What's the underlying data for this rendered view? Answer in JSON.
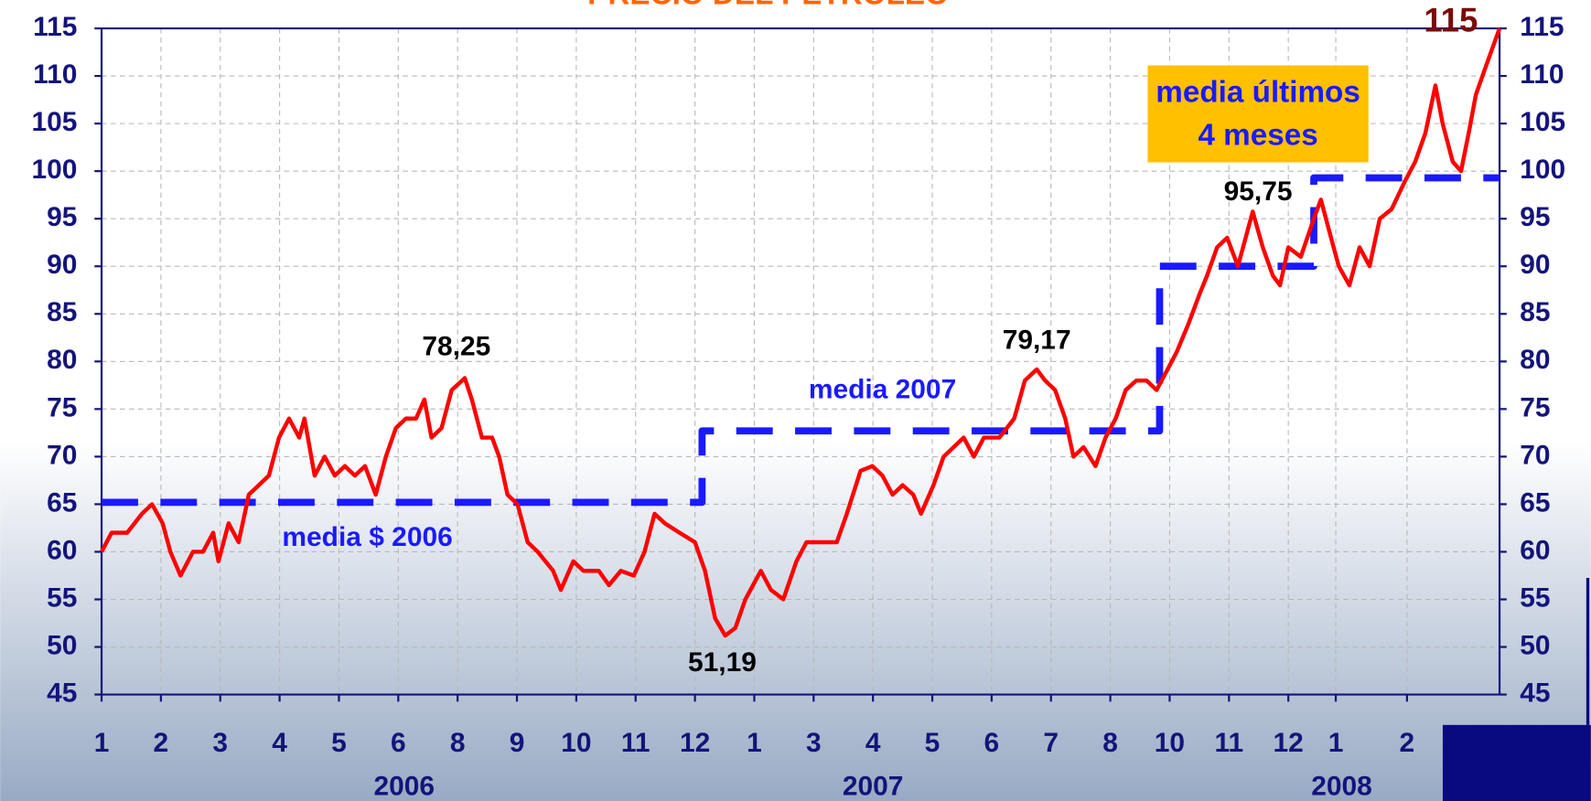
{
  "chart_data": {
    "type": "line",
    "title": "PRECIO DEL PETROLEO",
    "title_color": "#ff6600",
    "xlim": [
      0,
      23.56
    ],
    "ylim": [
      45,
      115
    ],
    "y2lim": [
      45,
      115
    ],
    "yticks": [
      45,
      50,
      55,
      60,
      65,
      70,
      75,
      80,
      85,
      90,
      95,
      100,
      105,
      110,
      115
    ],
    "y2ticks": [
      45,
      50,
      55,
      60,
      65,
      70,
      75,
      80,
      85,
      90,
      95,
      100,
      105,
      110,
      115
    ],
    "xticks": [
      {
        "value": 0,
        "label": "1"
      },
      {
        "value": 1,
        "label": "2"
      },
      {
        "value": 2,
        "label": "3"
      },
      {
        "value": 3,
        "label": "4"
      },
      {
        "value": 4,
        "label": "5"
      },
      {
        "value": 5,
        "label": "6"
      },
      {
        "value": 6,
        "label": "8"
      },
      {
        "value": 7,
        "label": "9"
      },
      {
        "value": 8,
        "label": "10"
      },
      {
        "value": 9,
        "label": "11"
      },
      {
        "value": 10,
        "label": "12"
      },
      {
        "value": 11,
        "label": "1"
      },
      {
        "value": 12,
        "label": "3"
      },
      {
        "value": 13,
        "label": "4"
      },
      {
        "value": 14,
        "label": "5"
      },
      {
        "value": 15,
        "label": "6"
      },
      {
        "value": 16,
        "label": "7"
      },
      {
        "value": 17,
        "label": "8"
      },
      {
        "value": 18,
        "label": "10"
      },
      {
        "value": 19,
        "label": "11"
      },
      {
        "value": 20,
        "label": "12"
      },
      {
        "value": 20.8,
        "label": "1"
      },
      {
        "value": 22,
        "label": "2"
      }
    ],
    "x_groups": [
      {
        "value": 5.1,
        "label": "2006"
      },
      {
        "value": 13,
        "label": "2007"
      },
      {
        "value": 20.9,
        "label": "2008"
      }
    ],
    "grid": true,
    "series": [
      {
        "color": "#ff0000",
        "x": [
          0,
          0.17,
          0.43,
          0.68,
          0.85,
          1.03,
          1.16,
          1.33,
          1.54,
          1.71,
          1.88,
          1.97,
          2.14,
          2.31,
          2.48,
          2.65,
          2.82,
          2.99,
          3.16,
          3.33,
          3.42,
          3.59,
          3.76,
          3.93,
          4.1,
          4.27,
          4.44,
          4.62,
          4.79,
          4.96,
          5.13,
          5.3,
          5.44,
          5.56,
          5.73,
          5.9,
          6.12,
          6.24,
          6.41,
          6.58,
          6.7,
          6.84,
          7.01,
          7.18,
          7.35,
          7.61,
          7.74,
          7.95,
          8.12,
          8.38,
          8.55,
          8.75,
          8.97,
          9.15,
          9.32,
          9.49,
          9.74,
          10,
          10.17,
          10.34,
          10.51,
          10.68,
          10.85,
          11.11,
          11.28,
          11.49,
          11.71,
          11.88,
          12.14,
          12.39,
          12.56,
          12.79,
          12.99,
          13.16,
          13.33,
          13.5,
          13.68,
          13.81,
          14.02,
          14.19,
          14.36,
          14.53,
          14.7,
          14.87,
          15.13,
          15.38,
          15.56,
          15.76,
          15.9,
          16.07,
          16.24,
          16.38,
          16.55,
          16.75,
          16.92,
          17.09,
          17.26,
          17.44,
          17.61,
          17.78,
          17.95,
          18.12,
          18.32,
          18.5,
          18.63,
          18.8,
          18.97,
          19.15,
          19.28,
          19.4,
          19.57,
          19.74,
          19.86,
          20,
          20.21,
          20.43,
          20.55,
          20.72,
          20.85,
          21.03,
          21.2,
          21.37,
          21.54,
          21.74,
          21.97,
          22.14,
          22.31,
          22.48,
          22.6,
          22.77,
          22.91,
          23.04,
          23.16,
          23.33,
          23.56
        ],
        "values": [
          60,
          62,
          62,
          64,
          65,
          63,
          60,
          57.5,
          60,
          60,
          62,
          59,
          63,
          61,
          66,
          67,
          68,
          72,
          74,
          72,
          74,
          68,
          70,
          68,
          69,
          68,
          69,
          66,
          70,
          73,
          74,
          74,
          76,
          72,
          73,
          77,
          78.25,
          76,
          72,
          72,
          70,
          66,
          65,
          61,
          60,
          58,
          56,
          59,
          58,
          58,
          56.5,
          58,
          57.5,
          60,
          64,
          63,
          62,
          61,
          58,
          53,
          51.19,
          52,
          55,
          58,
          56,
          55,
          59,
          61,
          61,
          61,
          64,
          68.5,
          69,
          68,
          66,
          67,
          66,
          64,
          67,
          70,
          71,
          72,
          70,
          72,
          72,
          74,
          78,
          79.17,
          78,
          77,
          74,
          70,
          71,
          69,
          72,
          74,
          77,
          78,
          78,
          77,
          79,
          81,
          84,
          87,
          89,
          92,
          93,
          90,
          93,
          95.75,
          92,
          89,
          88,
          92,
          91,
          95,
          97,
          93,
          90,
          88,
          92,
          90,
          95,
          96,
          99,
          101,
          104,
          109,
          105,
          101,
          100,
          104,
          108,
          111,
          115
        ]
      },
      {
        "color": "#1a1aff",
        "dashed": true,
        "x": [
          0,
          10.12,
          10.12,
          17.83,
          17.83,
          20.43,
          20.43,
          23.56
        ],
        "values": [
          65.2,
          65.2,
          72.7,
          72.7,
          90,
          90,
          99.3,
          99.3
        ]
      }
    ],
    "annotations": [
      {
        "text": "78,25",
        "x": 5.98,
        "y": 81.4,
        "color": "#000000"
      },
      {
        "text": "51,19",
        "x": 10.46,
        "y": 48.2,
        "color": "#000000"
      },
      {
        "text": "79,17",
        "x": 15.76,
        "y": 82.1,
        "color": "#000000"
      },
      {
        "text": "95,75",
        "x": 19.49,
        "y": 97.7,
        "color": "#000000"
      },
      {
        "text": "115",
        "x": 22.74,
        "y": 115.6,
        "color": "#7a0a0a"
      },
      {
        "text": "media $ 2006",
        "x": 4.48,
        "y": 61.4,
        "color": "#1a1aff"
      },
      {
        "text": "media 2007",
        "x": 13.16,
        "y": 76.9,
        "color": "#1a1aff"
      }
    ],
    "box_annotation": {
      "text": [
        "media últimos",
        "4 meses"
      ],
      "x": 19.49,
      "y": [
        108.1,
        103.6
      ],
      "color": "#1a1aff",
      "background": "#ffc000"
    }
  }
}
